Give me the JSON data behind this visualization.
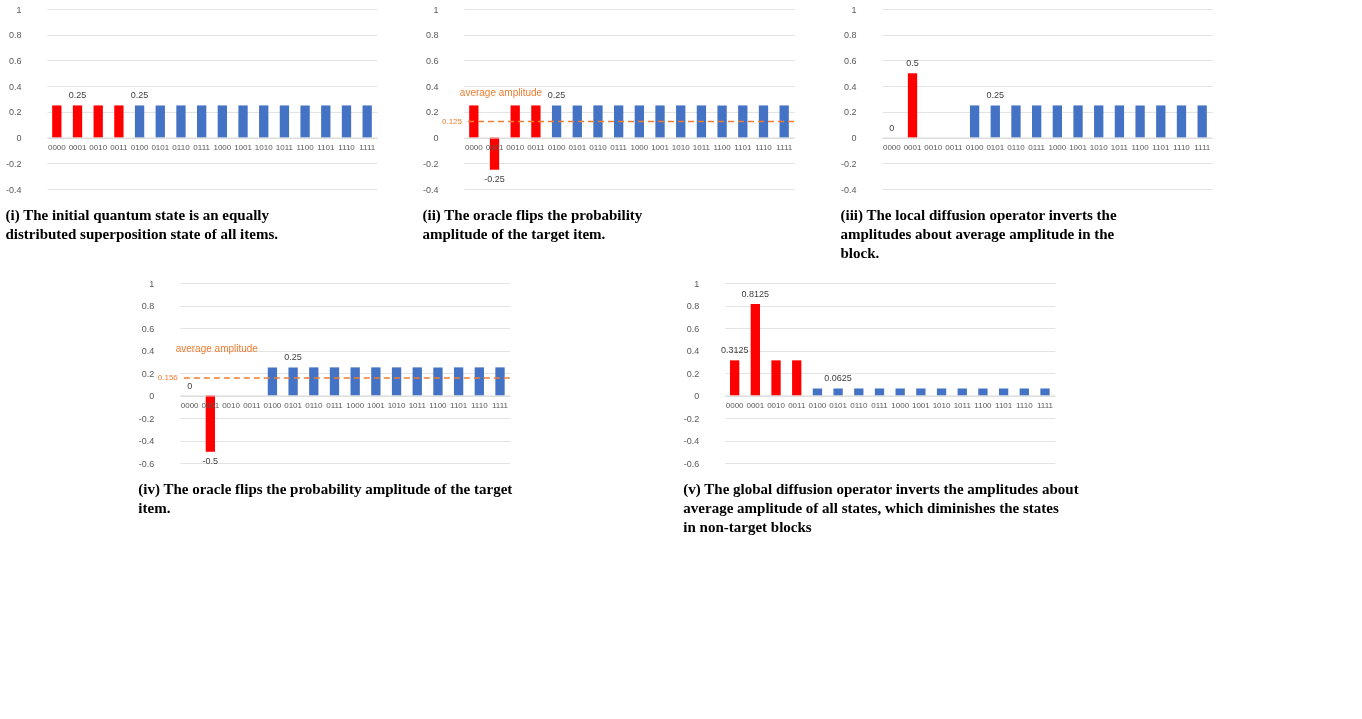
{
  "chart_data": [
    {
      "type": "bar",
      "categories": [
        "0000",
        "0001",
        "0010",
        "0011",
        "0100",
        "0101",
        "0110",
        "0111",
        "1000",
        "1001",
        "1010",
        "1011",
        "1100",
        "1101",
        "1110",
        "1111"
      ],
      "values": [
        0.25,
        0.25,
        0.25,
        0.25,
        0.25,
        0.25,
        0.25,
        0.25,
        0.25,
        0.25,
        0.25,
        0.25,
        0.25,
        0.25,
        0.25,
        0.25
      ],
      "colors": [
        "#ff0000",
        "#ff0000",
        "#ff0000",
        "#ff0000",
        "#4472c4",
        "#4472c4",
        "#4472c4",
        "#4472c4",
        "#4472c4",
        "#4472c4",
        "#4472c4",
        "#4472c4",
        "#4472c4",
        "#4472c4",
        "#4472c4",
        "#4472c4"
      ],
      "value_labels": [
        null,
        "0.25",
        null,
        null,
        "0.25",
        null,
        null,
        null,
        null,
        null,
        null,
        null,
        null,
        null,
        null,
        null
      ],
      "ylim": [
        -0.4,
        1
      ],
      "yticks": [
        -0.4,
        -0.2,
        0,
        0.2,
        0.4,
        0.6,
        0.8,
        1
      ],
      "grid": "y",
      "annotations": [
        "(i) The initial quantum state is an equally distributed superposition state of all items."
      ]
    },
    {
      "type": "bar",
      "categories": [
        "0000",
        "0001",
        "0010",
        "0011",
        "0100",
        "0101",
        "0110",
        "0111",
        "1000",
        "1001",
        "1010",
        "1011",
        "1100",
        "1101",
        "1110",
        "1111"
      ],
      "values": [
        0.25,
        -0.25,
        0.25,
        0.25,
        0.25,
        0.25,
        0.25,
        0.25,
        0.25,
        0.25,
        0.25,
        0.25,
        0.25,
        0.25,
        0.25,
        0.25
      ],
      "colors": [
        "#ff0000",
        "#ff0000",
        "#ff0000",
        "#ff0000",
        "#4472c4",
        "#4472c4",
        "#4472c4",
        "#4472c4",
        "#4472c4",
        "#4472c4",
        "#4472c4",
        "#4472c4",
        "#4472c4",
        "#4472c4",
        "#4472c4",
        "#4472c4"
      ],
      "value_labels": [
        null,
        "-0.25",
        null,
        null,
        "0.25",
        null,
        null,
        null,
        null,
        null,
        null,
        null,
        null,
        null,
        null,
        null
      ],
      "ylim": [
        -0.4,
        1
      ],
      "yticks": [
        -0.4,
        -0.2,
        0,
        0.2,
        0.4,
        0.6,
        0.8,
        1
      ],
      "grid": "y",
      "ref_lines": [
        {
          "axis": "y",
          "value": 0.125,
          "label": "0.125",
          "color": "#ed7d31",
          "line_style": "dashed"
        }
      ],
      "annotations": [
        "average amplitude",
        "(ii) The oracle flips the probability amplitude of the target item."
      ]
    },
    {
      "type": "bar",
      "categories": [
        "0000",
        "0001",
        "0010",
        "0011",
        "0100",
        "0101",
        "0110",
        "0111",
        "1000",
        "1001",
        "1010",
        "1011",
        "1100",
        "1101",
        "1110",
        "1111"
      ],
      "values": [
        0,
        0.5,
        0,
        0,
        0.25,
        0.25,
        0.25,
        0.25,
        0.25,
        0.25,
        0.25,
        0.25,
        0.25,
        0.25,
        0.25,
        0.25
      ],
      "colors": [
        "#ff0000",
        "#ff0000",
        "#ff0000",
        "#ff0000",
        "#4472c4",
        "#4472c4",
        "#4472c4",
        "#4472c4",
        "#4472c4",
        "#4472c4",
        "#4472c4",
        "#4472c4",
        "#4472c4",
        "#4472c4",
        "#4472c4",
        "#4472c4"
      ],
      "value_labels": [
        "0",
        "0.5",
        null,
        null,
        null,
        "0.25",
        null,
        null,
        null,
        null,
        null,
        null,
        null,
        null,
        null,
        null
      ],
      "ylim": [
        -0.4,
        1
      ],
      "yticks": [
        -0.4,
        -0.2,
        0,
        0.2,
        0.4,
        0.6,
        0.8,
        1
      ],
      "grid": "y",
      "annotations": [
        "(iii) The local diffusion operator inverts the amplitudes about average amplitude in the block."
      ]
    },
    {
      "type": "bar",
      "categories": [
        "0000",
        "0001",
        "0010",
        "0011",
        "0100",
        "0101",
        "0110",
        "0111",
        "1000",
        "1001",
        "1010",
        "1011",
        "1100",
        "1101",
        "1110",
        "1111"
      ],
      "values": [
        0,
        -0.5,
        0,
        0,
        0.25,
        0.25,
        0.25,
        0.25,
        0.25,
        0.25,
        0.25,
        0.25,
        0.25,
        0.25,
        0.25,
        0.25
      ],
      "colors": [
        "#ff0000",
        "#ff0000",
        "#ff0000",
        "#ff0000",
        "#4472c4",
        "#4472c4",
        "#4472c4",
        "#4472c4",
        "#4472c4",
        "#4472c4",
        "#4472c4",
        "#4472c4",
        "#4472c4",
        "#4472c4",
        "#4472c4",
        "#4472c4"
      ],
      "value_labels": [
        "0",
        "-0.5",
        null,
        null,
        null,
        "0.25",
        null,
        null,
        null,
        null,
        null,
        null,
        null,
        null,
        null,
        null
      ],
      "ylim": [
        -0.6,
        1
      ],
      "yticks": [
        -0.6,
        -0.4,
        -0.2,
        0,
        0.2,
        0.4,
        0.6,
        0.8,
        1
      ],
      "grid": "y",
      "ref_lines": [
        {
          "axis": "y",
          "value": 0.156,
          "label": "0.156",
          "color": "#ed7d31",
          "line_style": "dashed"
        }
      ],
      "annotations": [
        "average amplitude",
        "(iv) The oracle flips the probability amplitude of the target item."
      ]
    },
    {
      "type": "bar",
      "categories": [
        "0000",
        "0001",
        "0010",
        "0011",
        "0100",
        "0101",
        "0110",
        "0111",
        "1000",
        "1001",
        "1010",
        "1011",
        "1100",
        "1101",
        "1110",
        "1111"
      ],
      "values": [
        0.3125,
        0.8125,
        0.3125,
        0.3125,
        0.0625,
        0.0625,
        0.0625,
        0.0625,
        0.0625,
        0.0625,
        0.0625,
        0.0625,
        0.0625,
        0.0625,
        0.0625,
        0.0625
      ],
      "colors": [
        "#ff0000",
        "#ff0000",
        "#ff0000",
        "#ff0000",
        "#4472c4",
        "#4472c4",
        "#4472c4",
        "#4472c4",
        "#4472c4",
        "#4472c4",
        "#4472c4",
        "#4472c4",
        "#4472c4",
        "#4472c4",
        "#4472c4",
        "#4472c4"
      ],
      "value_labels": [
        "0.3125",
        "0.8125",
        null,
        null,
        null,
        "0.0625",
        null,
        null,
        null,
        null,
        null,
        null,
        null,
        null,
        null,
        null
      ],
      "ylim": [
        -0.6,
        1
      ],
      "yticks": [
        -0.6,
        -0.4,
        -0.2,
        0,
        0.2,
        0.4,
        0.6,
        0.8,
        1
      ],
      "grid": "y",
      "annotations": [
        "(v) The global diffusion operator inverts the amplitudes about average amplitude of all states, which diminishes the states in non-target blocks"
      ]
    }
  ]
}
